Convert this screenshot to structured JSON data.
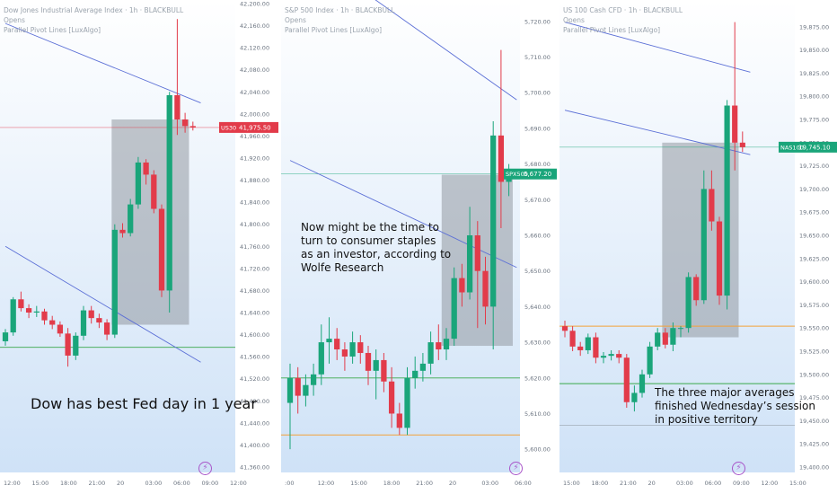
{
  "colors": {
    "up": "#1aa57a",
    "down": "#e23b4a",
    "box": "#8a9097",
    "channel": "#5b6fd6",
    "support": "#3aa84a",
    "orange": "#f3a23a",
    "bg_top": "#ffffff",
    "bg_bottom": "#cfe2f7",
    "bolt": "#a855c9"
  },
  "chart_data": [
    {
      "type": "candlestick",
      "id": "dow",
      "header": {
        "symbol": "Dow Jones Industrial Average Index · 1h · BLACKBULL",
        "line2": "Opens",
        "line3": "Parallel Pivot Lines [LuxAlgo]"
      },
      "ylim": [
        41360,
        42200
      ],
      "y_ticks": [
        "42,200.00",
        "42,160.00",
        "42,120.00",
        "42,080.00",
        "42,040.00",
        "42,000.00",
        "41,960.00",
        "41,920.00",
        "41,880.00",
        "41,840.00",
        "41,800.00",
        "41,760.00",
        "41,720.00",
        "41,680.00",
        "41,640.00",
        "41,600.00",
        "41,560.00",
        "41,520.00",
        "41,480.00",
        "41,440.00",
        "41,400.00",
        "41,360.00"
      ],
      "x_ticks": [
        "12:00",
        "15:00",
        "18:00",
        "21:00",
        "20",
        "03:00",
        "06:00",
        "09:00",
        "12:00"
      ],
      "price_label": {
        "ticker": "US30",
        "value": "41,975.50",
        "price": 41975.5,
        "color": "down"
      },
      "candles": [
        [
          41588,
          41604,
          41580,
          41610
        ],
        [
          41604,
          41664,
          41598,
          41668
        ],
        [
          41664,
          41648,
          41642,
          41678
        ],
        [
          41648,
          41640,
          41630,
          41655
        ],
        [
          41640,
          41642,
          41632,
          41652
        ],
        [
          41642,
          41626,
          41618,
          41647
        ],
        [
          41626,
          41618,
          41610,
          41634
        ],
        [
          41618,
          41602,
          41596,
          41624
        ],
        [
          41602,
          41562,
          41542,
          41612
        ],
        [
          41562,
          41598,
          41554,
          41604
        ],
        [
          41598,
          41644,
          41590,
          41652
        ],
        [
          41644,
          41630,
          41620,
          41652
        ],
        [
          41630,
          41622,
          41612,
          41638
        ],
        [
          41622,
          41600,
          41590,
          41628
        ],
        [
          41600,
          41790,
          41594,
          41800
        ],
        [
          41790,
          41784,
          41776,
          41802
        ],
        [
          41784,
          41836,
          41778,
          41846
        ],
        [
          41836,
          41912,
          41828,
          41922
        ],
        [
          41912,
          41890,
          41872,
          41918
        ],
        [
          41890,
          41828,
          41820,
          41898
        ],
        [
          41828,
          41680,
          41668,
          41836
        ],
        [
          41680,
          42034,
          41640,
          42040
        ],
        [
          42034,
          41990,
          41962,
          42172
        ],
        [
          41990,
          41978,
          41966,
          42002
        ],
        [
          41978,
          41975.5,
          41970,
          41986
        ]
      ],
      "channel_upper": [
        [
          0,
          42164
        ],
        [
          25,
          42020
        ]
      ],
      "channel_lower": [
        [
          0,
          41760
        ],
        [
          25,
          41550
        ]
      ],
      "support": 41577,
      "resistance_price": 41975.5,
      "box": {
        "c0": 13.6,
        "c1": 23.5,
        "top": 41990,
        "bottom": 41618
      },
      "caption": "Dow has best Fed day in 1 year"
    },
    {
      "type": "candlestick",
      "id": "spx",
      "header": {
        "symbol": "S&P 500 Index · 1h · BLACKBULL",
        "line2": "Opens",
        "line3": "Parallel Pivot Lines [LuxAlgo]"
      },
      "ylim": [
        5595,
        5725
      ],
      "y_ticks": [
        "5,720.00",
        "5,710.00",
        "5,700.00",
        "5,690.00",
        "5,680.00",
        "5,670.00",
        "5,660.00",
        "5,650.00",
        "5,640.00",
        "5,630.00",
        "5,620.00",
        "5,610.00",
        "5,600.00"
      ],
      "x_ticks": [
        ":00",
        "12:00",
        "15:00",
        "18:00",
        "21:00",
        "20",
        "03:00",
        "06:00"
      ],
      "price_label": {
        "ticker": "SPX500",
        "value": "5,677.20",
        "price": 5677.2,
        "color": "up"
      },
      "candles": [
        [
          5613,
          5620,
          5600,
          5624
        ],
        [
          5620,
          5615,
          5610,
          5623
        ],
        [
          5615,
          5618,
          5612,
          5621
        ],
        [
          5618,
          5621,
          5615,
          5624
        ],
        [
          5621,
          5630,
          5618,
          5635
        ],
        [
          5630,
          5631,
          5624,
          5637
        ],
        [
          5631,
          5628,
          5625,
          5634
        ],
        [
          5628,
          5626,
          5622,
          5630
        ],
        [
          5626,
          5630,
          5624,
          5633
        ],
        [
          5630,
          5627,
          5624,
          5632
        ],
        [
          5627,
          5622,
          5618,
          5629
        ],
        [
          5622,
          5625,
          5614,
          5628
        ],
        [
          5625,
          5619,
          5616,
          5627
        ],
        [
          5619,
          5610,
          5606,
          5623
        ],
        [
          5610,
          5606,
          5604,
          5613
        ],
        [
          5606,
          5620,
          5604,
          5623
        ],
        [
          5620,
          5622,
          5617,
          5626
        ],
        [
          5622,
          5624,
          5619,
          5627
        ],
        [
          5624,
          5630,
          5621,
          5633
        ],
        [
          5630,
          5628,
          5625,
          5635
        ],
        [
          5628,
          5631,
          5625,
          5634
        ],
        [
          5631,
          5648,
          5629,
          5651
        ],
        [
          5648,
          5644,
          5640,
          5652
        ],
        [
          5644,
          5660,
          5642,
          5668
        ],
        [
          5660,
          5650,
          5634,
          5664
        ],
        [
          5650,
          5640,
          5635,
          5654
        ],
        [
          5640,
          5688,
          5628,
          5692
        ],
        [
          5688,
          5675,
          5662,
          5712
        ],
        [
          5675,
          5677.2,
          5671,
          5680
        ]
      ],
      "channel_upper": [
        [
          0,
          5743
        ],
        [
          29,
          5698
        ]
      ],
      "channel_lower": [
        [
          0,
          5681
        ],
        [
          29,
          5651
        ]
      ],
      "support": 5620,
      "resistance_price": 5677.2,
      "orange": 5604,
      "box": {
        "c0": 19.4,
        "c1": 28.5,
        "top": 5677,
        "bottom": 5629
      },
      "caption": "Now might be the time to\nturn to consumer staples\nas an investor, according to\nWolfe Research"
    },
    {
      "type": "candlestick",
      "id": "nas",
      "header": {
        "symbol": "US 100 Cash CFD · 1h · BLACKBULL",
        "line2": "Opens",
        "line3": "Parallel Pivot Lines [LuxAlgo]"
      },
      "ylim": [
        19400,
        19900
      ],
      "y_ticks": [
        "19,875.00",
        "19,850.00",
        "19,825.00",
        "19,800.00",
        "19,775.00",
        "19,750.00",
        "19,725.00",
        "19,700.00",
        "19,675.00",
        "19,650.00",
        "19,625.00",
        "19,600.00",
        "19,575.00",
        "19,550.00",
        "19,525.00",
        "19,500.00",
        "19,475.00",
        "19,450.00",
        "19,425.00",
        "19,400.00"
      ],
      "x_ticks": [
        "15:00",
        "18:00",
        "21:00",
        "20",
        "03:00",
        "06:00",
        "09:00",
        "12:00",
        "15:00"
      ],
      "price_label": {
        "ticker": "NAS100",
        "value": "19,745.10",
        "price": 19745.1,
        "color": "up"
      },
      "candles": [
        [
          19552,
          19547,
          19540,
          19558
        ],
        [
          19547,
          19530,
          19525,
          19552
        ],
        [
          19530,
          19526,
          19520,
          19535
        ],
        [
          19526,
          19540,
          19522,
          19544
        ],
        [
          19540,
          19518,
          19512,
          19545
        ],
        [
          19518,
          19520,
          19512,
          19524
        ],
        [
          19520,
          19522,
          19515,
          19526
        ],
        [
          19522,
          19518,
          19512,
          19526
        ],
        [
          19518,
          19470,
          19464,
          19522
        ],
        [
          19470,
          19480,
          19460,
          19488
        ],
        [
          19480,
          19500,
          19475,
          19505
        ],
        [
          19500,
          19530,
          19496,
          19535
        ],
        [
          19530,
          19545,
          19526,
          19550
        ],
        [
          19545,
          19532,
          19528,
          19550
        ],
        [
          19532,
          19550,
          19525,
          19556
        ],
        [
          19550,
          19550,
          19540,
          19552
        ],
        [
          19550,
          19605,
          19545,
          19610
        ],
        [
          19605,
          19580,
          19574,
          19608
        ],
        [
          19580,
          19700,
          19576,
          19720
        ],
        [
          19700,
          19665,
          19655,
          19720
        ],
        [
          19665,
          19585,
          19575,
          19670
        ],
        [
          19585,
          19790,
          19570,
          19796
        ],
        [
          19790,
          19750,
          19720,
          19880
        ],
        [
          19750,
          19745.1,
          19740,
          19762
        ]
      ],
      "channel_upper": [
        [
          0,
          19880
        ],
        [
          24,
          19826
        ]
      ],
      "channel_lower": [
        [
          0,
          19785
        ],
        [
          24,
          19737
        ]
      ],
      "support": 19490,
      "resistance_price": 19745.1,
      "orange": 19552,
      "support2": 19445,
      "box": {
        "c0": 12.6,
        "c1": 22.5,
        "top": 19750,
        "bottom": 19540
      },
      "caption": "The three major averages\nfinished Wednesday’s session\nin positive territory"
    }
  ]
}
